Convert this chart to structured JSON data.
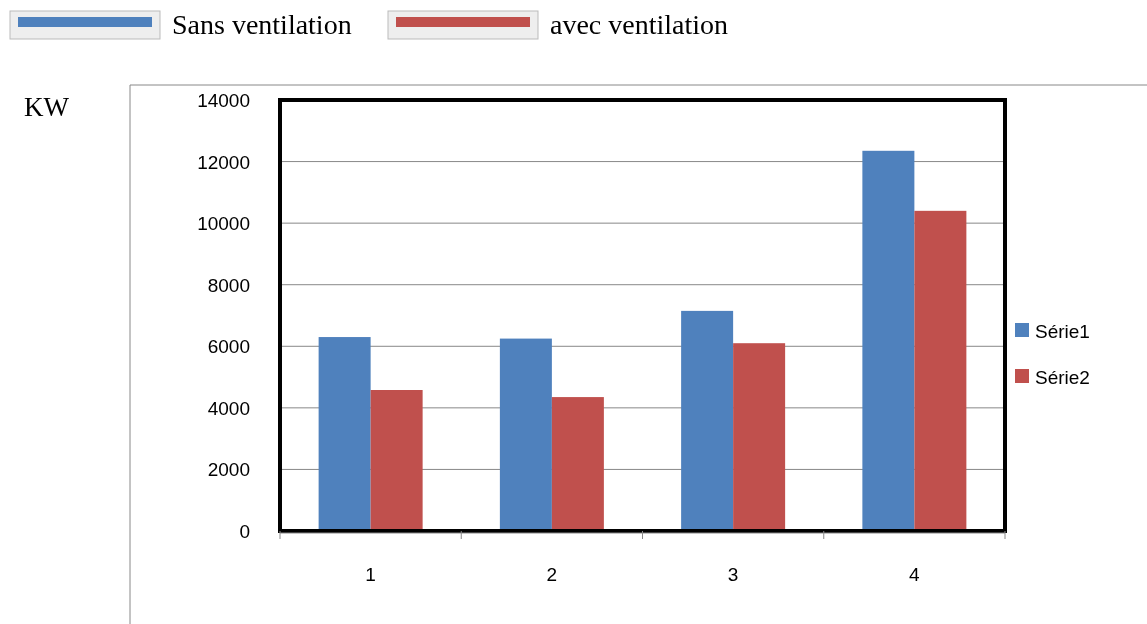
{
  "chart_data": {
    "type": "bar",
    "ylabel": "KW",
    "categories": [
      "1",
      "2",
      "3",
      "4"
    ],
    "series": [
      {
        "name": "Série1",
        "color": "#4f81bd",
        "values": [
          6300,
          6250,
          7150,
          12350
        ]
      },
      {
        "name": "Série2",
        "color": "#c0504d",
        "values": [
          4580,
          4350,
          6100,
          10400
        ]
      }
    ],
    "ylim": [
      0,
      14000
    ],
    "yticks": [
      0,
      2000,
      4000,
      6000,
      8000,
      10000,
      12000,
      14000
    ],
    "grid": "y",
    "legend": "right",
    "annotations": [
      "Sans ventilation",
      "avec ventilation"
    ]
  }
}
